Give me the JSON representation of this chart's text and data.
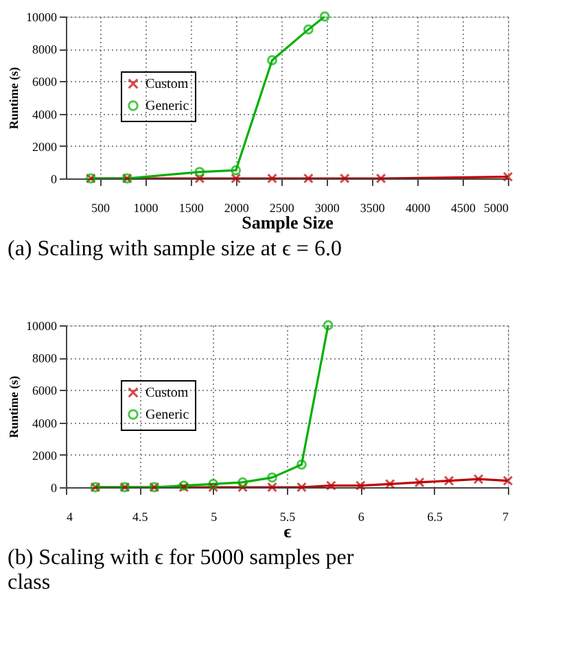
{
  "chart_data": [
    {
      "type": "line",
      "title": "(a) Scaling with sample size at ϵ = 6.0",
      "xlabel": "Sample Size",
      "ylabel": "Runtime (s)",
      "xlim": [
        125,
        5000
      ],
      "xticks": [
        500,
        1000,
        1500,
        2000,
        2500,
        3000,
        3500,
        4000,
        4500,
        5000
      ],
      "ylim": [
        0,
        10000
      ],
      "yticks": [
        0,
        2000,
        4000,
        6000,
        8000,
        10000
      ],
      "grid": true,
      "legend": "top left",
      "line_style": "solid",
      "series": [
        {
          "name": "Custom",
          "color": "#c00000",
          "marker": "cross",
          "x": [
            400,
            800,
            1600,
            2000,
            2400,
            2800,
            3200,
            3600,
            5000
          ],
          "values": [
            0,
            0,
            0,
            0,
            0,
            0,
            0,
            0,
            100
          ]
        },
        {
          "name": "Generic",
          "color": "#00b000",
          "marker": "circle",
          "x": [
            400,
            800,
            1600,
            2000,
            2400,
            2800,
            2980
          ],
          "values": [
            0,
            0,
            400,
            500,
            7300,
            9200,
            10000
          ]
        }
      ]
    },
    {
      "type": "line",
      "title": "(b) Scaling with ϵ for 5000 samples per class",
      "xlabel": "ϵ",
      "ylabel": "Runtime (s)",
      "xlim": [
        4,
        7
      ],
      "xticks": [
        4,
        4.5,
        5,
        5.5,
        6,
        6.5,
        7
      ],
      "ylim": [
        0,
        10000
      ],
      "yticks": [
        0,
        2000,
        4000,
        6000,
        8000,
        10000
      ],
      "grid": true,
      "legend": "top left",
      "line_style": "solid",
      "series": [
        {
          "name": "Custom",
          "color": "#c00000",
          "marker": "cross",
          "x": [
            4.2,
            4.4,
            4.6,
            4.8,
            5.0,
            5.2,
            5.4,
            5.6,
            5.8,
            6.0,
            6.2,
            6.4,
            6.6,
            6.8,
            7.0
          ],
          "values": [
            0,
            0,
            0,
            0,
            0,
            0,
            0,
            0,
            100,
            100,
            200,
            300,
            400,
            500,
            400
          ]
        },
        {
          "name": "Generic",
          "color": "#00b000",
          "marker": "circle",
          "x": [
            4.2,
            4.4,
            4.6,
            4.8,
            5.0,
            5.2,
            5.4,
            5.6,
            5.78
          ],
          "values": [
            0,
            0,
            0,
            100,
            200,
            300,
            600,
            1400,
            10000
          ]
        }
      ]
    }
  ]
}
